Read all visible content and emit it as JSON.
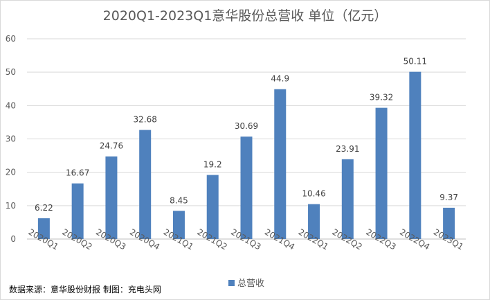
{
  "chart_data": {
    "type": "bar",
    "title": "2020Q1-2023Q1意华股份总营收 单位（亿元）",
    "categories": [
      "2020Q1",
      "2020Q2",
      "2020Q3",
      "2020Q4",
      "2021Q1",
      "2021Q2",
      "2021Q3",
      "2021Q4",
      "2022Q1",
      "2022Q2",
      "2022Q3",
      "2022Q4",
      "2023Q1"
    ],
    "series": [
      {
        "name": "总营收",
        "values": [
          6.22,
          16.67,
          24.76,
          32.68,
          8.45,
          19.2,
          30.69,
          44.9,
          10.46,
          23.91,
          39.32,
          50.11,
          9.37
        ],
        "labels": [
          "6.22",
          "16.67",
          "24.76",
          "32.68",
          "8.45",
          "19.2",
          "30.69",
          "44.9",
          "10.46",
          "23.91",
          "39.32",
          "50.11",
          "9.37"
        ]
      }
    ],
    "ylim": [
      0,
      60
    ],
    "yticks": [
      "0",
      "10",
      "20",
      "30",
      "40",
      "50",
      "60"
    ],
    "grid": true,
    "legend_position": "bottom",
    "bar_color": "#4f81bd",
    "grid_color": "#d9d9d9"
  },
  "footer": {
    "source": "数据来源：意华股份财报 制图：充电头网"
  }
}
